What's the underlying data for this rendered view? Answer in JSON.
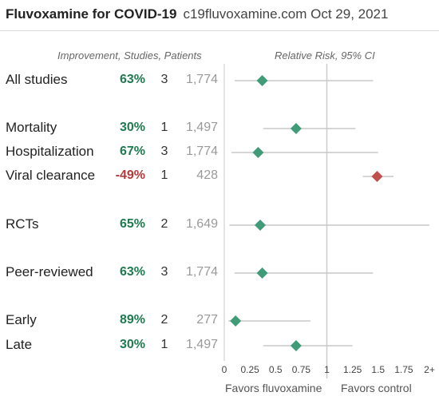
{
  "header": {
    "title": "Fluvoxamine for COVID-19",
    "source": "c19fluvoxamine.com Oct 29, 2021"
  },
  "column_headers": {
    "left": "Improvement, Studies, Patients",
    "right": "Relative Risk, 95% CI"
  },
  "favors": {
    "left": "Favors fluvoxamine",
    "right": "Favors control"
  },
  "colors": {
    "positive": "#1f7a4f",
    "negative": "#b33a3a",
    "diamond_positive": "#3f9b78",
    "diamond_negative": "#c0504d",
    "ci_line": "#c8c8c8",
    "reference_line": "#cccccc"
  },
  "chart_data": {
    "type": "forest",
    "xlabel": "",
    "xlim": [
      0,
      2
    ],
    "reference": 1,
    "ticks": [
      "0",
      "0.25",
      "0.5",
      "0.75",
      "1",
      "1.25",
      "1.5",
      "1.75",
      "2+"
    ],
    "rows": [
      {
        "label": "All studies",
        "improvement": "63%",
        "studies": "3",
        "patients": "1,774",
        "rr": 0.37,
        "lo": 0.1,
        "hi": 1.45,
        "hi_capped": false,
        "sign": "positive"
      },
      {
        "label": "Mortality",
        "improvement": "30%",
        "studies": "1",
        "patients": "1,497",
        "rr": 0.7,
        "lo": 0.38,
        "hi": 1.28,
        "hi_capped": false,
        "sign": "positive"
      },
      {
        "label": "Hospitalization",
        "improvement": "67%",
        "studies": "3",
        "patients": "1,774",
        "rr": 0.33,
        "lo": 0.07,
        "hi": 1.5,
        "hi_capped": false,
        "sign": "positive"
      },
      {
        "label": "Viral clearance",
        "improvement": "-49%",
        "studies": "1",
        "patients": "428",
        "rr": 1.49,
        "lo": 1.35,
        "hi": 1.65,
        "hi_capped": false,
        "sign": "negative"
      },
      {
        "label": "RCTs",
        "improvement": "65%",
        "studies": "2",
        "patients": "1,649",
        "rr": 0.35,
        "lo": 0.05,
        "hi": 2.0,
        "hi_capped": true,
        "sign": "positive"
      },
      {
        "label": "Peer-reviewed",
        "improvement": "63%",
        "studies": "3",
        "patients": "1,774",
        "rr": 0.37,
        "lo": 0.1,
        "hi": 1.45,
        "hi_capped": false,
        "sign": "positive"
      },
      {
        "label": "Early",
        "improvement": "89%",
        "studies": "2",
        "patients": "277",
        "rr": 0.11,
        "lo": 0.04,
        "hi": 0.84,
        "hi_capped": false,
        "sign": "positive"
      },
      {
        "label": "Late",
        "improvement": "30%",
        "studies": "1",
        "patients": "1,497",
        "rr": 0.7,
        "lo": 0.38,
        "hi": 1.25,
        "hi_capped": false,
        "sign": "positive"
      }
    ]
  }
}
